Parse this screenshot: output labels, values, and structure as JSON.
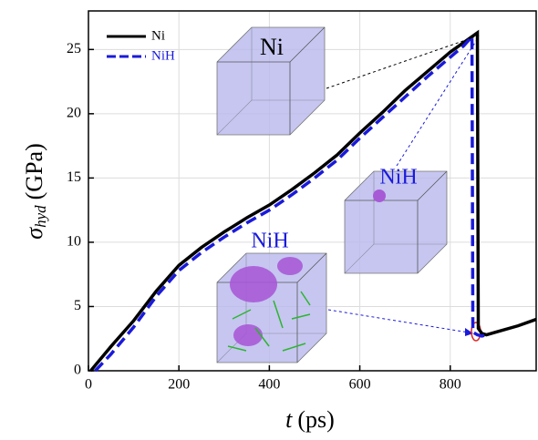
{
  "chart_data": {
    "type": "line",
    "x_label": {
      "symbol": "t",
      "unit": "(ps)"
    },
    "y_label": {
      "symbol": "σ",
      "subscript": "hyd",
      "unit": "(GPa)"
    },
    "xlim": [
      0,
      990
    ],
    "xticks": [
      0,
      200,
      400,
      600,
      800
    ],
    "ylim": [
      0,
      28
    ],
    "yticks": [
      0,
      5,
      10,
      15,
      20,
      25
    ],
    "grid": true,
    "legend": "upper left",
    "series": [
      {
        "name": "Ni",
        "color": "#000000",
        "dash": false,
        "x": [
          5,
          50,
          100,
          150,
          200,
          250,
          300,
          350,
          400,
          450,
          500,
          550,
          600,
          650,
          700,
          750,
          800,
          840,
          860,
          862,
          870,
          880,
          900,
          950,
          990
        ],
        "values": [
          0,
          1.9,
          3.9,
          6.2,
          8.2,
          9.6,
          10.8,
          11.9,
          12.9,
          14.1,
          15.4,
          16.8,
          18.5,
          20.1,
          21.8,
          23.3,
          24.8,
          25.8,
          26.3,
          3.3,
          2.9,
          2.8,
          3.0,
          3.5,
          4.0
        ]
      },
      {
        "name": "NiH",
        "color": "#1a1adb",
        "dash": true,
        "x": [
          15,
          50,
          100,
          150,
          200,
          250,
          300,
          350,
          400,
          450,
          500,
          550,
          600,
          650,
          700,
          750,
          800,
          830,
          848,
          850,
          860,
          870,
          880
        ],
        "values": [
          0,
          1.3,
          3.4,
          5.8,
          7.8,
          9.2,
          10.4,
          11.5,
          12.5,
          13.7,
          15.0,
          16.4,
          18.1,
          19.7,
          21.3,
          22.9,
          24.4,
          25.3,
          26.0,
          3.0,
          2.8,
          2.7,
          2.8
        ]
      }
    ],
    "annotations": [
      "Ni",
      "NiH",
      "NiH"
    ]
  }
}
